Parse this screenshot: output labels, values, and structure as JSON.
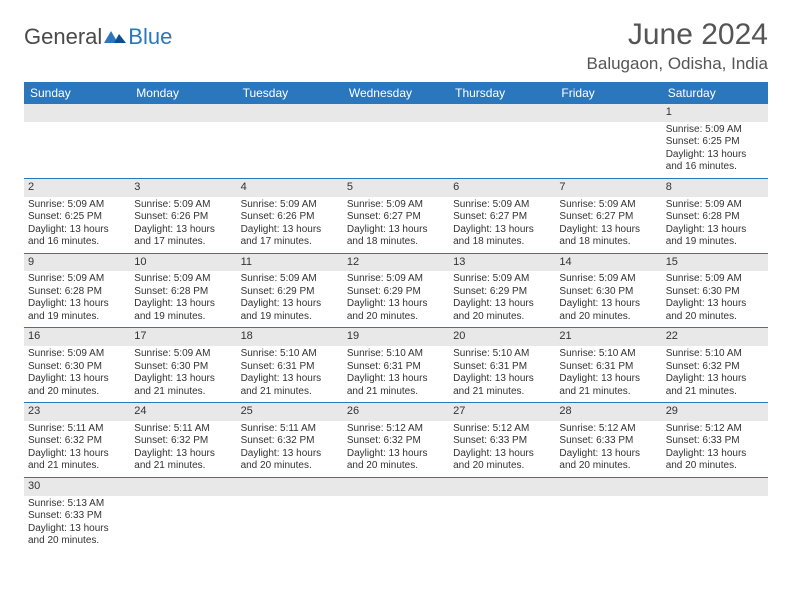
{
  "logo": {
    "text1": "General",
    "text2": "Blue"
  },
  "title": "June 2024",
  "location": "Balugaon, Odisha, India",
  "colors": {
    "header_bg": "#2b77bd",
    "header_text": "#ffffff",
    "daynum_bg": "#e8e8e8",
    "border": "#2b77bd",
    "text": "#333333",
    "title_text": "#555555"
  },
  "weekdays": [
    "Sunday",
    "Monday",
    "Tuesday",
    "Wednesday",
    "Thursday",
    "Friday",
    "Saturday"
  ],
  "weeks": [
    [
      null,
      null,
      null,
      null,
      null,
      null,
      {
        "d": "1",
        "sr": "Sunrise: 5:09 AM",
        "ss": "Sunset: 6:25 PM",
        "dl1": "Daylight: 13 hours",
        "dl2": "and 16 minutes."
      }
    ],
    [
      {
        "d": "2",
        "sr": "Sunrise: 5:09 AM",
        "ss": "Sunset: 6:25 PM",
        "dl1": "Daylight: 13 hours",
        "dl2": "and 16 minutes."
      },
      {
        "d": "3",
        "sr": "Sunrise: 5:09 AM",
        "ss": "Sunset: 6:26 PM",
        "dl1": "Daylight: 13 hours",
        "dl2": "and 17 minutes."
      },
      {
        "d": "4",
        "sr": "Sunrise: 5:09 AM",
        "ss": "Sunset: 6:26 PM",
        "dl1": "Daylight: 13 hours",
        "dl2": "and 17 minutes."
      },
      {
        "d": "5",
        "sr": "Sunrise: 5:09 AM",
        "ss": "Sunset: 6:27 PM",
        "dl1": "Daylight: 13 hours",
        "dl2": "and 18 minutes."
      },
      {
        "d": "6",
        "sr": "Sunrise: 5:09 AM",
        "ss": "Sunset: 6:27 PM",
        "dl1": "Daylight: 13 hours",
        "dl2": "and 18 minutes."
      },
      {
        "d": "7",
        "sr": "Sunrise: 5:09 AM",
        "ss": "Sunset: 6:27 PM",
        "dl1": "Daylight: 13 hours",
        "dl2": "and 18 minutes."
      },
      {
        "d": "8",
        "sr": "Sunrise: 5:09 AM",
        "ss": "Sunset: 6:28 PM",
        "dl1": "Daylight: 13 hours",
        "dl2": "and 19 minutes."
      }
    ],
    [
      {
        "d": "9",
        "sr": "Sunrise: 5:09 AM",
        "ss": "Sunset: 6:28 PM",
        "dl1": "Daylight: 13 hours",
        "dl2": "and 19 minutes."
      },
      {
        "d": "10",
        "sr": "Sunrise: 5:09 AM",
        "ss": "Sunset: 6:28 PM",
        "dl1": "Daylight: 13 hours",
        "dl2": "and 19 minutes."
      },
      {
        "d": "11",
        "sr": "Sunrise: 5:09 AM",
        "ss": "Sunset: 6:29 PM",
        "dl1": "Daylight: 13 hours",
        "dl2": "and 19 minutes."
      },
      {
        "d": "12",
        "sr": "Sunrise: 5:09 AM",
        "ss": "Sunset: 6:29 PM",
        "dl1": "Daylight: 13 hours",
        "dl2": "and 20 minutes."
      },
      {
        "d": "13",
        "sr": "Sunrise: 5:09 AM",
        "ss": "Sunset: 6:29 PM",
        "dl1": "Daylight: 13 hours",
        "dl2": "and 20 minutes."
      },
      {
        "d": "14",
        "sr": "Sunrise: 5:09 AM",
        "ss": "Sunset: 6:30 PM",
        "dl1": "Daylight: 13 hours",
        "dl2": "and 20 minutes."
      },
      {
        "d": "15",
        "sr": "Sunrise: 5:09 AM",
        "ss": "Sunset: 6:30 PM",
        "dl1": "Daylight: 13 hours",
        "dl2": "and 20 minutes."
      }
    ],
    [
      {
        "d": "16",
        "sr": "Sunrise: 5:09 AM",
        "ss": "Sunset: 6:30 PM",
        "dl1": "Daylight: 13 hours",
        "dl2": "and 20 minutes."
      },
      {
        "d": "17",
        "sr": "Sunrise: 5:09 AM",
        "ss": "Sunset: 6:30 PM",
        "dl1": "Daylight: 13 hours",
        "dl2": "and 21 minutes."
      },
      {
        "d": "18",
        "sr": "Sunrise: 5:10 AM",
        "ss": "Sunset: 6:31 PM",
        "dl1": "Daylight: 13 hours",
        "dl2": "and 21 minutes."
      },
      {
        "d": "19",
        "sr": "Sunrise: 5:10 AM",
        "ss": "Sunset: 6:31 PM",
        "dl1": "Daylight: 13 hours",
        "dl2": "and 21 minutes."
      },
      {
        "d": "20",
        "sr": "Sunrise: 5:10 AM",
        "ss": "Sunset: 6:31 PM",
        "dl1": "Daylight: 13 hours",
        "dl2": "and 21 minutes."
      },
      {
        "d": "21",
        "sr": "Sunrise: 5:10 AM",
        "ss": "Sunset: 6:31 PM",
        "dl1": "Daylight: 13 hours",
        "dl2": "and 21 minutes."
      },
      {
        "d": "22",
        "sr": "Sunrise: 5:10 AM",
        "ss": "Sunset: 6:32 PM",
        "dl1": "Daylight: 13 hours",
        "dl2": "and 21 minutes."
      }
    ],
    [
      {
        "d": "23",
        "sr": "Sunrise: 5:11 AM",
        "ss": "Sunset: 6:32 PM",
        "dl1": "Daylight: 13 hours",
        "dl2": "and 21 minutes."
      },
      {
        "d": "24",
        "sr": "Sunrise: 5:11 AM",
        "ss": "Sunset: 6:32 PM",
        "dl1": "Daylight: 13 hours",
        "dl2": "and 21 minutes."
      },
      {
        "d": "25",
        "sr": "Sunrise: 5:11 AM",
        "ss": "Sunset: 6:32 PM",
        "dl1": "Daylight: 13 hours",
        "dl2": "and 20 minutes."
      },
      {
        "d": "26",
        "sr": "Sunrise: 5:12 AM",
        "ss": "Sunset: 6:32 PM",
        "dl1": "Daylight: 13 hours",
        "dl2": "and 20 minutes."
      },
      {
        "d": "27",
        "sr": "Sunrise: 5:12 AM",
        "ss": "Sunset: 6:33 PM",
        "dl1": "Daylight: 13 hours",
        "dl2": "and 20 minutes."
      },
      {
        "d": "28",
        "sr": "Sunrise: 5:12 AM",
        "ss": "Sunset: 6:33 PM",
        "dl1": "Daylight: 13 hours",
        "dl2": "and 20 minutes."
      },
      {
        "d": "29",
        "sr": "Sunrise: 5:12 AM",
        "ss": "Sunset: 6:33 PM",
        "dl1": "Daylight: 13 hours",
        "dl2": "and 20 minutes."
      }
    ],
    [
      {
        "d": "30",
        "sr": "Sunrise: 5:13 AM",
        "ss": "Sunset: 6:33 PM",
        "dl1": "Daylight: 13 hours",
        "dl2": "and 20 minutes."
      },
      null,
      null,
      null,
      null,
      null,
      null
    ]
  ]
}
